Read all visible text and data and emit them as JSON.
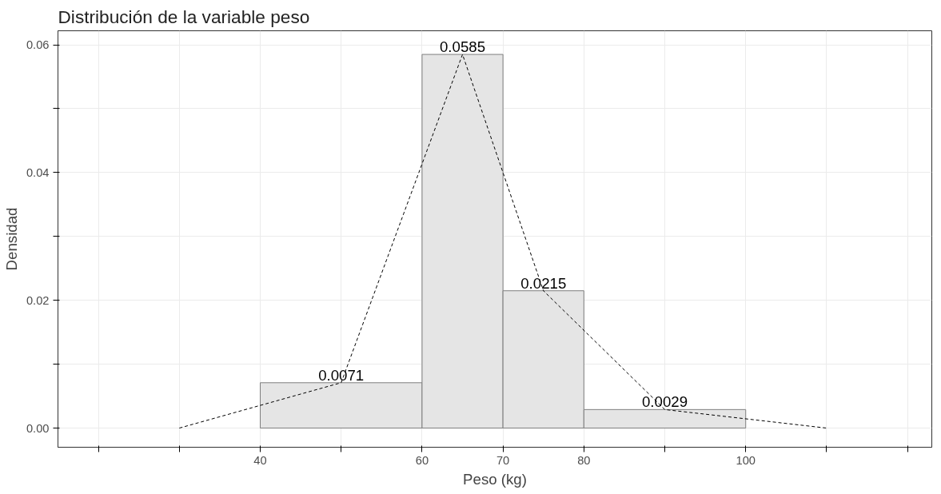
{
  "chart_data": {
    "type": "histogram",
    "title": "Distribución de la variable peso",
    "xlabel": "Peso (kg)",
    "ylabel": "Densidad",
    "bins": [
      40,
      60,
      70,
      80,
      100
    ],
    "values": [
      0.0071,
      0.0585,
      0.0215,
      0.0029
    ],
    "color": "#e5e5e5",
    "series": [
      {
        "type": "line",
        "x": [
          30,
          50,
          65,
          75,
          90,
          110
        ],
        "values": [
          0,
          0.0071,
          0.0585,
          0.0215,
          0.0029,
          0
        ],
        "color": "#000000",
        "line_style": "dashed",
        "value_labels": [
          null,
          "0.0071",
          "0.0585",
          "0.0215",
          "0.0029",
          null
        ]
      }
    ],
    "xlim": [
      15,
      123
    ],
    "ylim": [
      -0.003,
      0.0622
    ],
    "xticks": [
      {
        "value": 20,
        "label": null
      },
      {
        "value": 30,
        "label": null
      },
      40,
      {
        "value": 50,
        "label": null
      },
      60,
      70,
      80,
      {
        "value": 90,
        "label": null
      },
      100,
      {
        "value": 110,
        "label": null
      },
      {
        "value": 120,
        "label": null
      }
    ],
    "yticks": [
      {
        "value": 0,
        "label": "0.00"
      },
      {
        "value": 0.01,
        "label": null
      },
      {
        "value": 0.02,
        "label": "0.02"
      },
      {
        "value": 0.03,
        "label": null
      },
      {
        "value": 0.04,
        "label": "0.04"
      },
      {
        "value": 0.05,
        "label": null
      },
      {
        "value": 0.06,
        "label": "0.06"
      }
    ],
    "grid": true
  }
}
